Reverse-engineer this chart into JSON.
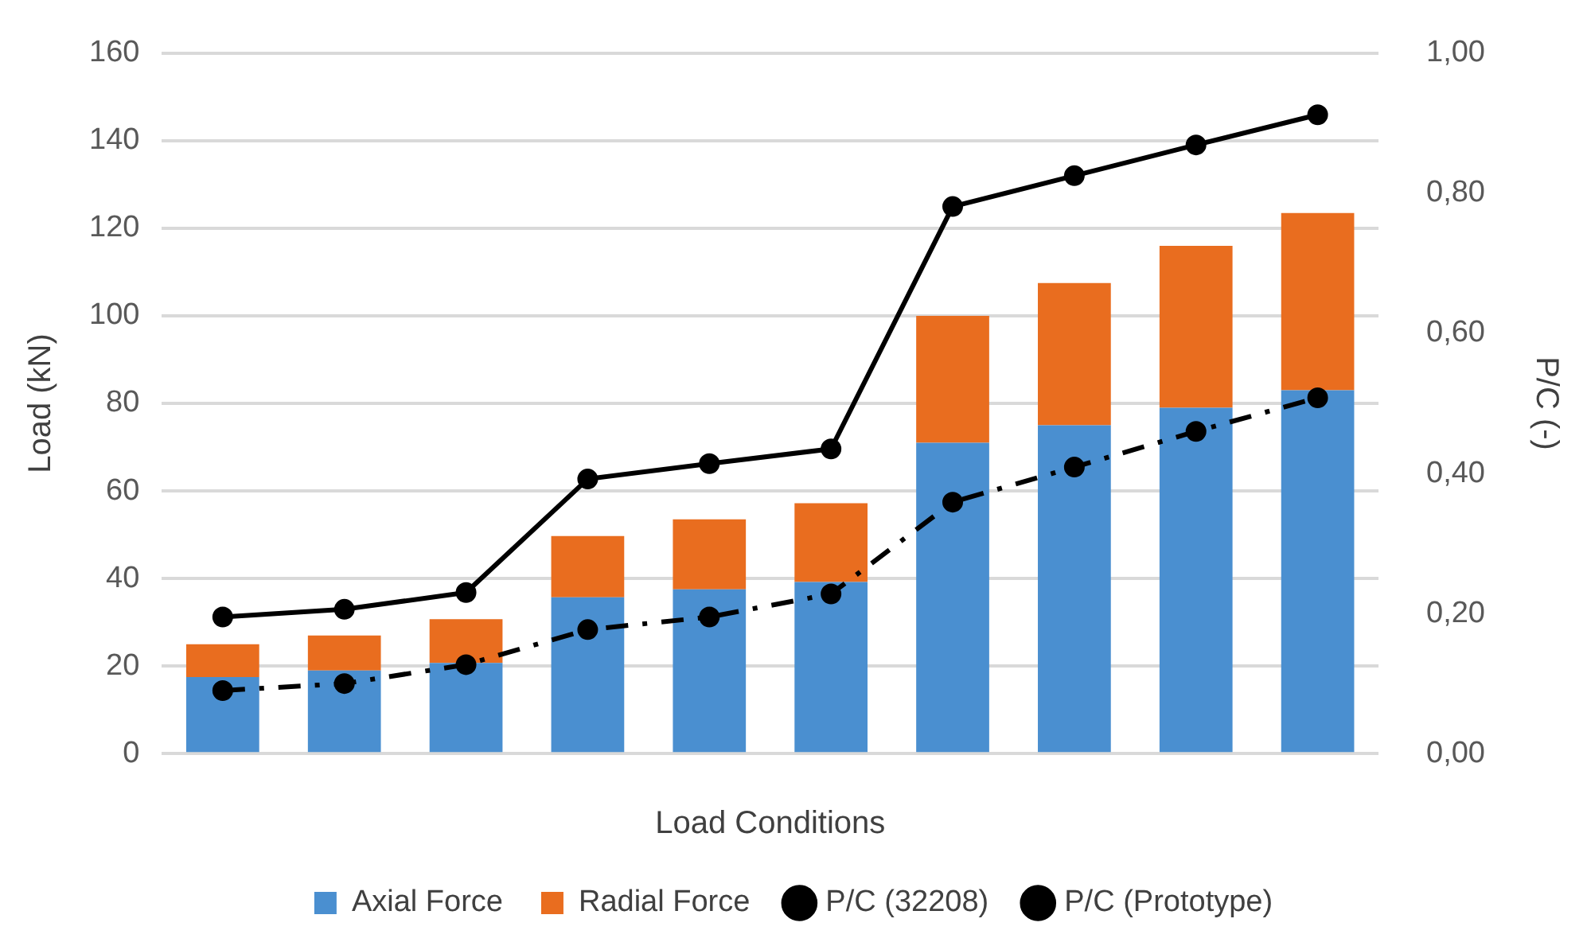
{
  "chart_data": {
    "type": "bar",
    "stacked": true,
    "xlabel": "Load Conditions",
    "ylabel": "Load (kN)",
    "y2label": "P/C (-)",
    "categories": [
      null,
      null,
      null,
      null,
      null,
      null,
      null,
      null,
      null,
      null
    ],
    "series": [
      {
        "name": "Axial Force",
        "color": "#4a8fd0",
        "values": [
          17.5,
          19,
          20.7,
          35.7,
          37.5,
          39.2,
          71,
          75,
          79,
          83
        ]
      },
      {
        "name": "Radial Force",
        "color": "#e96d1f",
        "values": [
          7.5,
          8,
          10,
          14,
          16,
          18,
          29,
          32.5,
          37,
          40.5
        ]
      },
      {
        "name": "P/C (32208)",
        "type": "line",
        "axis": "y2",
        "color": "#000000",
        "line_style": "solid",
        "marker": "circle",
        "values": [
          0.195,
          0.206,
          0.23,
          0.392,
          0.414,
          0.435,
          0.781,
          0.825,
          0.869,
          0.912
        ]
      },
      {
        "name": "P/C (Prototype)",
        "type": "line",
        "axis": "y2",
        "color": "#000000",
        "line_style": "dashed",
        "marker": "circle",
        "values": [
          0.09,
          0.1,
          0.127,
          0.177,
          0.195,
          0.228,
          0.359,
          0.409,
          0.46,
          0.508
        ]
      }
    ],
    "ylim": [
      0,
      160
    ],
    "yticks": [
      0,
      20,
      40,
      60,
      80,
      100,
      120,
      140,
      160
    ],
    "y2lim": [
      0,
      1
    ],
    "y2ticks": [
      {
        "value": 0,
        "label": "0,00"
      },
      {
        "value": 0.2,
        "label": "0,20"
      },
      {
        "value": 0.4,
        "label": "0,40"
      },
      {
        "value": 0.6,
        "label": "0,60"
      },
      {
        "value": 0.8,
        "label": "0,80"
      },
      {
        "value": 1,
        "label": "1,00"
      }
    ],
    "grid": "y",
    "legend": "bottom"
  }
}
